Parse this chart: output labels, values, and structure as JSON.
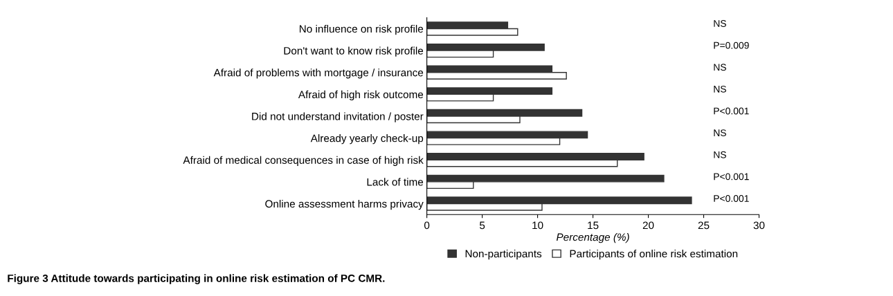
{
  "chart_data": {
    "type": "bar",
    "orientation": "horizontal",
    "xlabel": "Percentage (%)",
    "categories": [
      "No influence on risk profile",
      "Don't want to know risk profile",
      "Afraid of problems with mortgage / insurance",
      "Afraid of high risk outcome",
      "Did not understand invitation / poster",
      "Already yearly check-up",
      "Afraid of medical consequences in case of high risk",
      "Lack of time",
      "Online assessment harms privacy"
    ],
    "series": [
      {
        "name": "Non-participants",
        "color": "#333333",
        "values": [
          7.3,
          10.6,
          11.3,
          11.3,
          14.0,
          14.5,
          19.6,
          21.4,
          23.9
        ]
      },
      {
        "name": "Participants of online risk estimation",
        "color": "#ffffff",
        "values": [
          8.2,
          6.0,
          12.6,
          6.0,
          8.4,
          12.0,
          17.2,
          4.2,
          10.4
        ]
      }
    ],
    "xlim": [
      0,
      30
    ],
    "xticks": [
      0,
      5,
      10,
      15,
      20,
      25,
      30
    ],
    "grid": false,
    "legend": "bottom",
    "annotations": [
      "NS",
      "P=0.009",
      "NS",
      "NS",
      "P<0.001",
      "NS",
      "NS",
      "P<0.001",
      "P<0.001",
      "Figure 3 Attitude towards participating in online risk estimation of PC CMR."
    ]
  }
}
